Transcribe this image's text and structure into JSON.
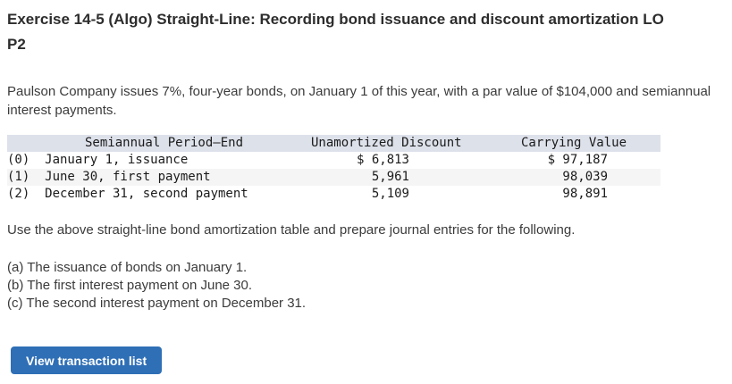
{
  "page": {
    "title": "Exercise 14-5 (Algo) Straight-Line: Recording bond issuance and discount amortization LO P2",
    "intro": "Paulson Company issues 7%, four-year bonds, on January 1 of this year, with a par value of $104,000 and semiannual interest payments.",
    "instruction": "Use the above straight-line bond amortization table and prepare journal entries for the following.",
    "requirements": [
      "(a) The issuance of bonds on January 1.",
      "(b) The first interest payment on June 30.",
      "(c) The second interest payment on December 31."
    ],
    "button_label": "View transaction list"
  },
  "amortization_table": {
    "headers": {
      "period": "Semiannual Period–End",
      "discount": "Unamortized Discount",
      "carrying": "Carrying Value"
    },
    "rows": [
      {
        "period": "(0)  January 1, issuance",
        "unamortized_discount": "$ 6,813",
        "carrying_value": "$ 97,187"
      },
      {
        "period": "(1)  June 30, first payment",
        "unamortized_discount": "5,961",
        "carrying_value": "98,039"
      },
      {
        "period": "(2)  December 31, second payment",
        "unamortized_discount": "5,109",
        "carrying_value": "98,891"
      }
    ]
  },
  "colors": {
    "table_header_bg": "#dde1ea",
    "table_stripe_bg": "#f5f5f6",
    "button_bg": "#2f6fb6",
    "button_text": "#ffffff",
    "title_text": "#2d2d2d",
    "body_text": "#3b3b3b"
  }
}
